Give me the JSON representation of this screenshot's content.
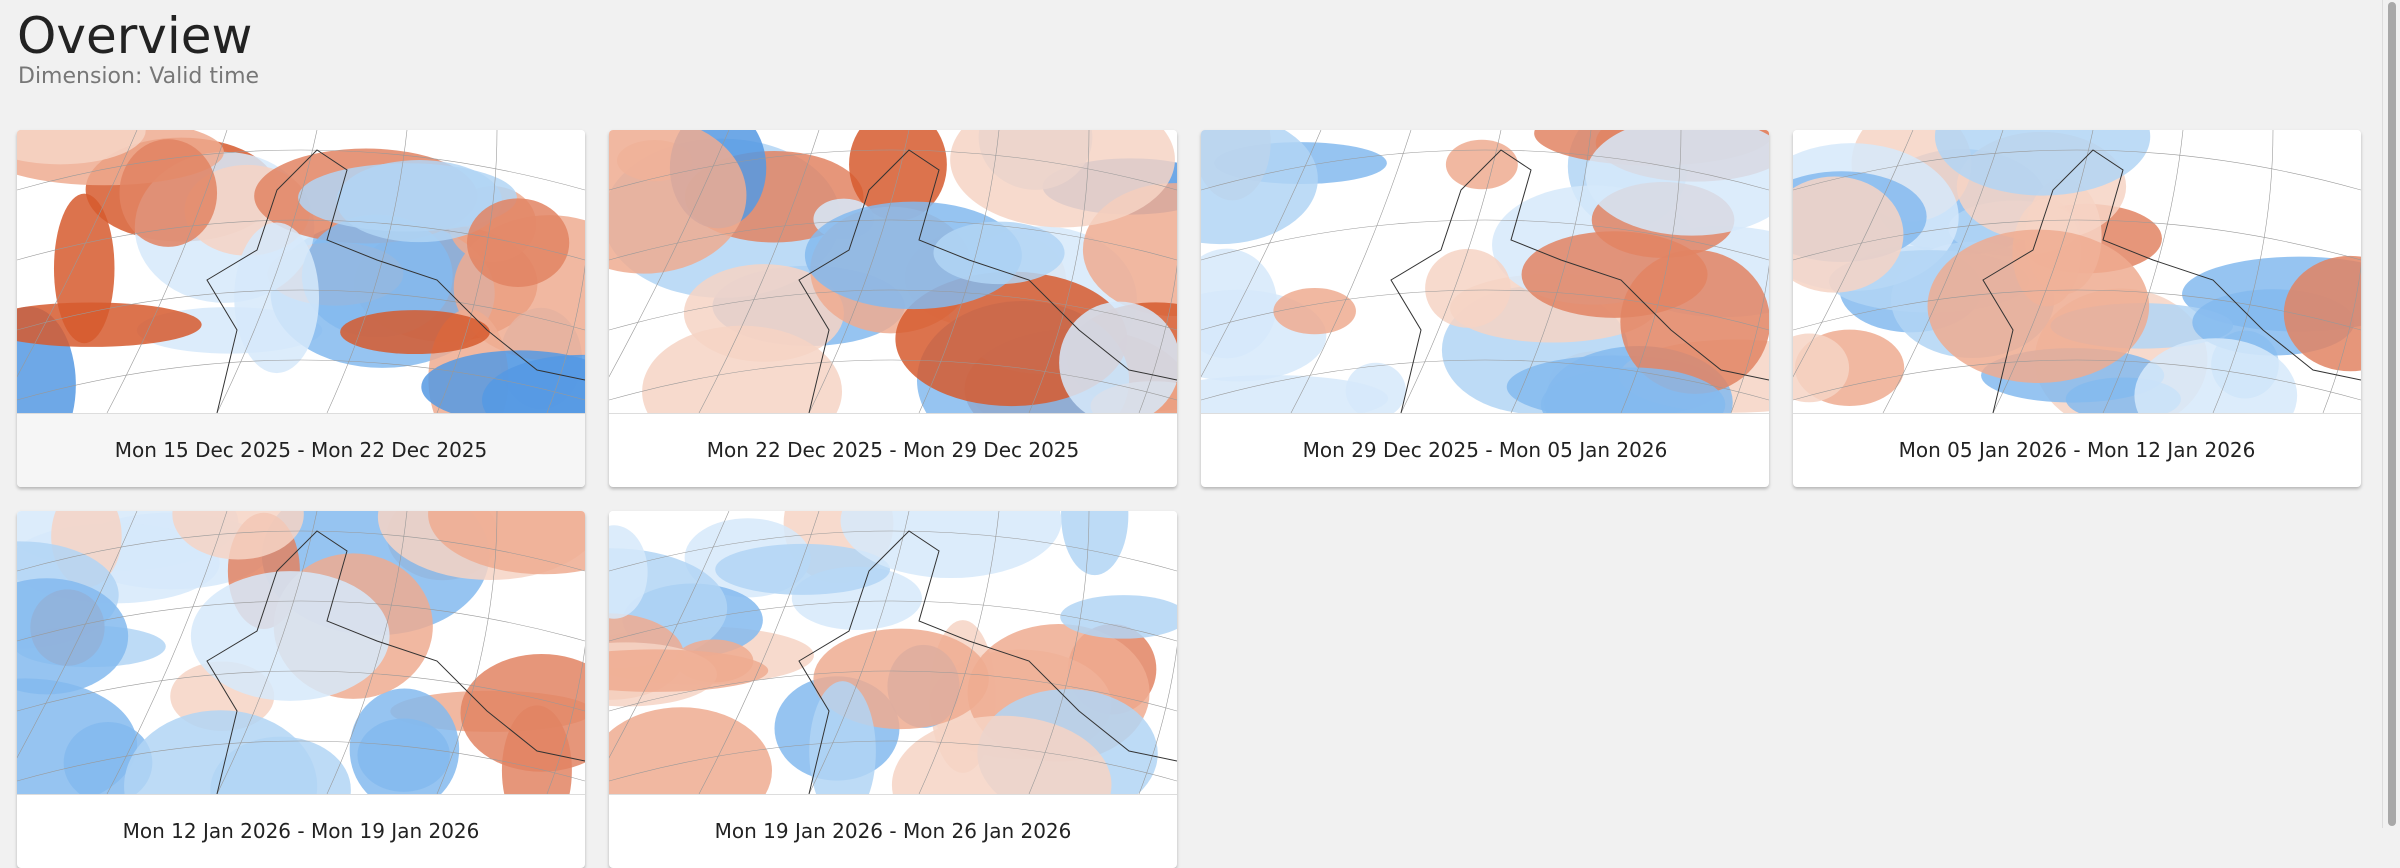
{
  "header": {
    "title": "Overview",
    "subtitle": "Dimension: Valid time"
  },
  "cards": [
    {
      "label": "Mon 15 Dec 2025 - Mon 22 Dec 2025"
    },
    {
      "label": "Mon 22 Dec 2025 - Mon 29 Dec 2025"
    },
    {
      "label": "Mon 29 Dec 2025 - Mon 05 Jan 2026"
    },
    {
      "label": "Mon 05 Jan 2026 - Mon 12 Jan 2026"
    },
    {
      "label": "Mon 12 Jan 2026 - Mon 19 Jan 2026"
    },
    {
      "label": "Mon 19 Jan 2026 - Mon 26 Jan 2026"
    }
  ]
}
